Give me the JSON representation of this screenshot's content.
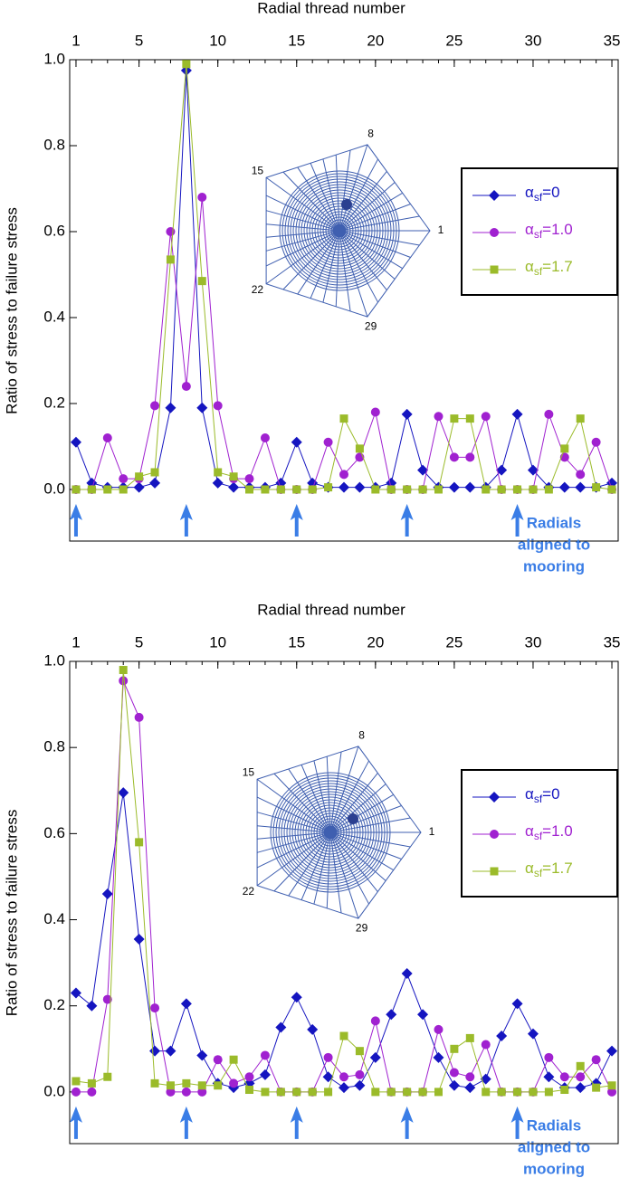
{
  "chart_data": [
    {
      "type": "line",
      "xlabel": "Radial thread number",
      "ylabel": "Ratio of stress to failure stress",
      "x": [
        1,
        2,
        3,
        4,
        5,
        6,
        7,
        8,
        9,
        10,
        11,
        12,
        13,
        14,
        15,
        16,
        17,
        18,
        19,
        20,
        21,
        22,
        23,
        24,
        25,
        26,
        27,
        28,
        29,
        30,
        31,
        32,
        33,
        34,
        35
      ],
      "xlim": [
        0.6,
        35.4
      ],
      "ylim": [
        -0.12,
        1.0
      ],
      "xticks": [
        1,
        5,
        10,
        15,
        20,
        25,
        30,
        35
      ],
      "yticks": [
        {
          "value": 0,
          "label": "0.0"
        },
        {
          "value": 0.2,
          "label": "0.2"
        },
        {
          "value": 0.4,
          "label": "0.4"
        },
        {
          "value": 0.6,
          "label": "0.6"
        },
        {
          "value": 0.8,
          "label": "0.8"
        },
        {
          "value": 1,
          "label": "1.0"
        }
      ],
      "series": [
        {
          "name": "αsf=0",
          "color": "#1515c0",
          "marker": "diamond",
          "values": [
            0.11,
            0.015,
            0.005,
            0.005,
            0.005,
            0.015,
            0.19,
            0.975,
            0.19,
            0.015,
            0.005,
            0.005,
            0.005,
            0.015,
            0.11,
            0.015,
            0.005,
            0.005,
            0.005,
            0.005,
            0.015,
            0.175,
            0.045,
            0.005,
            0.005,
            0.005,
            0.005,
            0.045,
            0.175,
            0.045,
            0.005,
            0.005,
            0.005,
            0.005,
            0.015
          ]
        },
        {
          "name": "αsf=1.0",
          "color": "#a021d0",
          "marker": "circle",
          "values": [
            0,
            0,
            0.12,
            0.025,
            0.025,
            0.195,
            0.6,
            0.24,
            0.68,
            0.195,
            0.025,
            0.025,
            0.12,
            0,
            0,
            0,
            0.11,
            0.035,
            0.075,
            0.18,
            0,
            0,
            0,
            0.17,
            0.075,
            0.075,
            0.17,
            0,
            0,
            0,
            0.175,
            0.075,
            0.035,
            0.11,
            0
          ]
        },
        {
          "name": "αsf=1.7",
          "color": "#9bbb2a",
          "marker": "square",
          "values": [
            0,
            0,
            0,
            0,
            0.03,
            0.04,
            0.535,
            0.99,
            0.485,
            0.04,
            0.03,
            0,
            0,
            0,
            0,
            0,
            0.005,
            0.165,
            0.095,
            0,
            0,
            0,
            0,
            0,
            0.165,
            0.165,
            0,
            0,
            0,
            0,
            0,
            0.095,
            0.165,
            0.005,
            0
          ]
        }
      ],
      "arrows_at": [
        1,
        8,
        15,
        22,
        29
      ],
      "annotation": [
        "Radials",
        "aligned to",
        "mooring"
      ],
      "inset_labels": [
        "8",
        "15",
        "1",
        "22",
        "29"
      ]
    },
    {
      "type": "line",
      "xlabel": "Radial thread number",
      "ylabel": "Ratio of stress to failure stress",
      "x": [
        1,
        2,
        3,
        4,
        5,
        6,
        7,
        8,
        9,
        10,
        11,
        12,
        13,
        14,
        15,
        16,
        17,
        18,
        19,
        20,
        21,
        22,
        23,
        24,
        25,
        26,
        27,
        28,
        29,
        30,
        31,
        32,
        33,
        34,
        35
      ],
      "xlim": [
        0.6,
        35.4
      ],
      "ylim": [
        -0.12,
        1.0
      ],
      "xticks": [
        1,
        5,
        10,
        15,
        20,
        25,
        30,
        35
      ],
      "yticks": [
        {
          "value": 0,
          "label": "0.0"
        },
        {
          "value": 0.2,
          "label": "0.2"
        },
        {
          "value": 0.4,
          "label": "0.4"
        },
        {
          "value": 0.6,
          "label": "0.6"
        },
        {
          "value": 0.8,
          "label": "0.8"
        },
        {
          "value": 1,
          "label": "1.0"
        }
      ],
      "series": [
        {
          "name": "αsf=0",
          "color": "#1515c0",
          "marker": "diamond",
          "values": [
            0.23,
            0.2,
            0.46,
            0.695,
            0.355,
            0.095,
            0.095,
            0.205,
            0.085,
            0.02,
            0.01,
            0.02,
            0.04,
            0.15,
            0.22,
            0.145,
            0.035,
            0.01,
            0.015,
            0.08,
            0.18,
            0.275,
            0.18,
            0.08,
            0.015,
            0.01,
            0.03,
            0.13,
            0.205,
            0.135,
            0.035,
            0.01,
            0.01,
            0.02,
            0.095
          ]
        },
        {
          "name": "αsf=1.0",
          "color": "#a021d0",
          "marker": "circle",
          "values": [
            0,
            0,
            0.215,
            0.955,
            0.87,
            0.195,
            0,
            0,
            0,
            0.075,
            0.02,
            0.035,
            0.085,
            0,
            0,
            0,
            0.08,
            0.035,
            0.04,
            0.165,
            0,
            0,
            0,
            0.145,
            0.045,
            0.035,
            0.11,
            0,
            0,
            0,
            0.08,
            0.035,
            0.035,
            0.075,
            0
          ]
        },
        {
          "name": "αsf=1.7",
          "color": "#9bbb2a",
          "marker": "square",
          "values": [
            0.025,
            0.02,
            0.035,
            0.98,
            0.58,
            0.02,
            0.015,
            0.02,
            0.015,
            0.015,
            0.075,
            0.005,
            0,
            0,
            0,
            0,
            0,
            0.13,
            0.095,
            0,
            0,
            0,
            0,
            0,
            0.1,
            0.125,
            0,
            0,
            0,
            0,
            0,
            0.005,
            0.06,
            0.01,
            0.015
          ]
        }
      ],
      "arrows_at": [
        1,
        8,
        15,
        22,
        29
      ],
      "annotation": [
        "Radials",
        "aligned to",
        "mooring"
      ],
      "inset_labels": [
        "8",
        "15",
        "1",
        "22",
        "29"
      ]
    }
  ]
}
